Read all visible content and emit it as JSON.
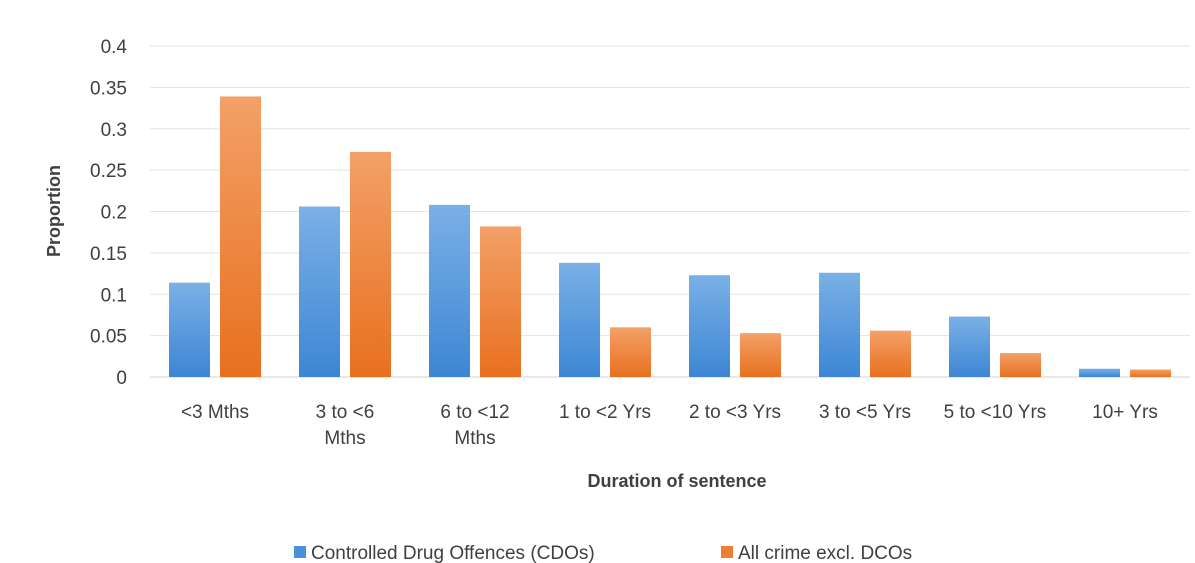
{
  "chart_data": {
    "type": "bar",
    "title": "",
    "xlabel": "Duration of sentence",
    "ylabel": "Proportion",
    "ylim": [
      0,
      0.4
    ],
    "yticks": [
      "0",
      "0.05",
      "0.1",
      "0.15",
      "0.2",
      "0.25",
      "0.3",
      "0.35",
      "0.4"
    ],
    "categories": [
      [
        "<3 Mths"
      ],
      [
        "3 to <6",
        "Mths"
      ],
      [
        "6 to <12",
        "Mths"
      ],
      [
        "1 to <2 Yrs"
      ],
      [
        "2 to <3 Yrs"
      ],
      [
        "3 to <5 Yrs"
      ],
      [
        "5 to <10 Yrs"
      ],
      [
        "10+ Yrs"
      ]
    ],
    "series": [
      {
        "name": "Controlled Drug Offences (CDOs)",
        "color": "#4a90d9",
        "values": [
          0.114,
          0.206,
          0.208,
          0.138,
          0.123,
          0.126,
          0.073,
          0.01
        ]
      },
      {
        "name": "All crime excl. DCOs",
        "color": "#ed7d31",
        "values": [
          0.339,
          0.272,
          0.182,
          0.06,
          0.053,
          0.056,
          0.029,
          0.009
        ]
      }
    ],
    "grid": true,
    "legend_position": "bottom"
  }
}
